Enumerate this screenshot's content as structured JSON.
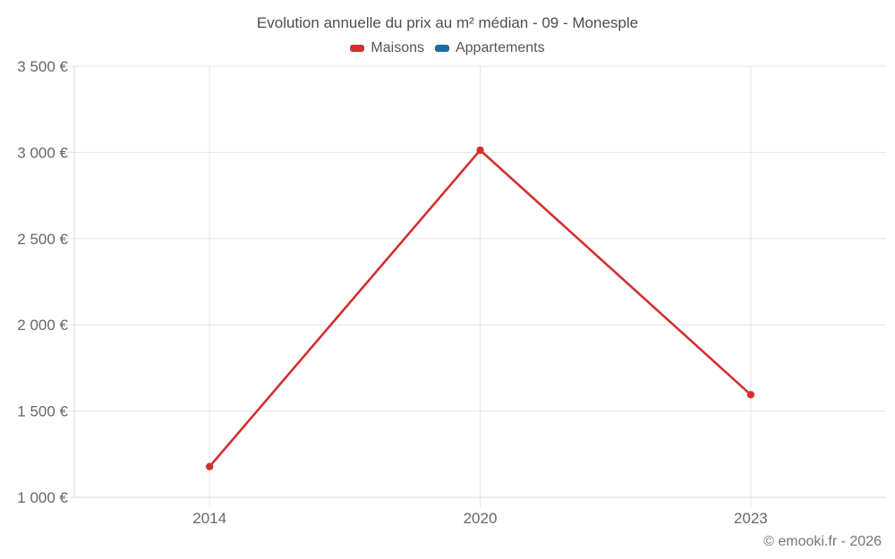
{
  "header": {
    "title": "Evolution annuelle du prix au m² médian - 09 - Monesple"
  },
  "legend": {
    "items": [
      {
        "label": "Maisons",
        "color": "#d32f2f"
      },
      {
        "label": "Appartements",
        "color": "#1a6ca3"
      }
    ]
  },
  "chart_data": {
    "type": "line",
    "title": "Evolution annuelle du prix au m² médian - 09 - Monesple",
    "categories": [
      "2014",
      "2020",
      "2023"
    ],
    "series": [
      {
        "name": "Maisons",
        "color": "#d32f2f",
        "values": [
          1178,
          3013,
          1595
        ]
      },
      {
        "name": "Appartements",
        "color": "#1a6ca3",
        "values": []
      }
    ],
    "xlabel": "",
    "ylabel": "",
    "ylim": [
      1000,
      3500
    ],
    "ytick_step": 500,
    "ytick_labels": [
      "1 000 €",
      "1 500 €",
      "2 000 €",
      "2 500 €",
      "3 000 €",
      "3 500 €"
    ],
    "grid": true,
    "legend_position": "top",
    "grid_color": "#e6e6e6",
    "axis_color": "#d9d9d9"
  },
  "footer": {
    "credit": "© emooki.fr - 2026"
  }
}
